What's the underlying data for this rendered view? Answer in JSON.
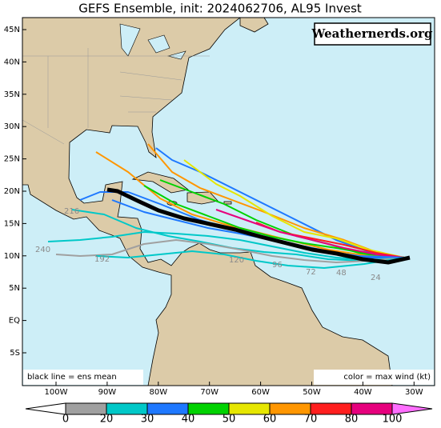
{
  "title": "GEFS Ensemble, init: 2024062706, AL95 Invest",
  "watermark": "Weathernerds.org",
  "lat_ticks": [
    "45N",
    "40N",
    "35N",
    "30N",
    "25N",
    "20N",
    "15N",
    "10N",
    "5N",
    "EQ",
    "5S"
  ],
  "lon_ticks": [
    "100W",
    "90W",
    "80W",
    "70W",
    "60W",
    "50W",
    "40W",
    "30W"
  ],
  "notes": {
    "left": "black line = ens mean",
    "right": "color = max wind (kt)"
  },
  "colorbar": {
    "ticks": [
      0,
      20,
      30,
      40,
      50,
      60,
      70,
      80,
      100
    ],
    "colors": [
      "#ffffff",
      "#a0a0a0",
      "#00c8c8",
      "#1e78ff",
      "#00d200",
      "#e6e600",
      "#ff9600",
      "#ff1e1e",
      "#e6007d",
      "#ff6eff"
    ]
  },
  "track_labels": [
    "240",
    "216",
    "192",
    "120",
    "96",
    "72",
    "48",
    "24"
  ]
}
